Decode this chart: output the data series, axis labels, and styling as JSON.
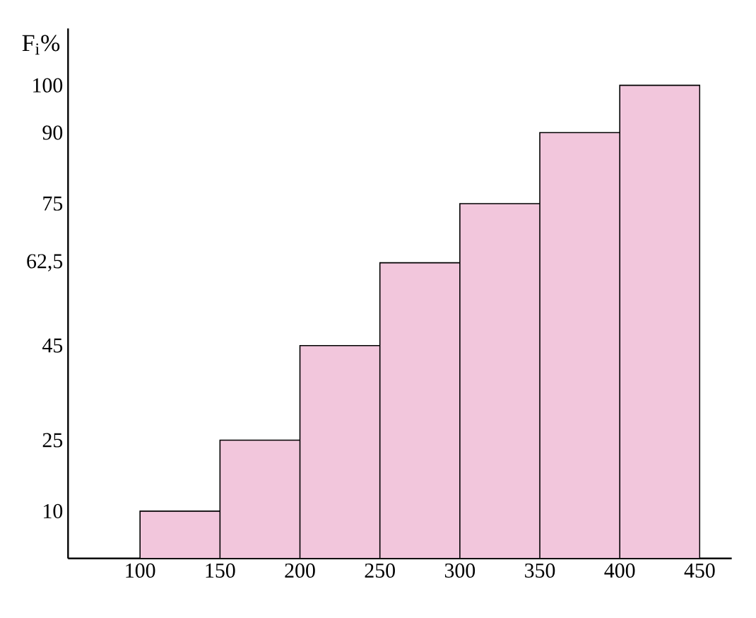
{
  "chart_data": {
    "type": "histogram",
    "ylabel": "F$_{i}$%",
    "bins": [
      100,
      150,
      200,
      250,
      300,
      350,
      400,
      450
    ],
    "values": [
      10,
      25,
      45,
      62.5,
      75,
      90,
      100
    ],
    "color": "#f2c6dc",
    "xlim": [
      55,
      470
    ],
    "ylim": [
      0,
      112
    ],
    "xticks": [
      100,
      150,
      200,
      250,
      300,
      350,
      400,
      450
    ],
    "yticks": [
      10,
      25,
      45,
      {
        "value": 62.5,
        "label": "62,5"
      },
      75,
      90,
      100
    ]
  }
}
